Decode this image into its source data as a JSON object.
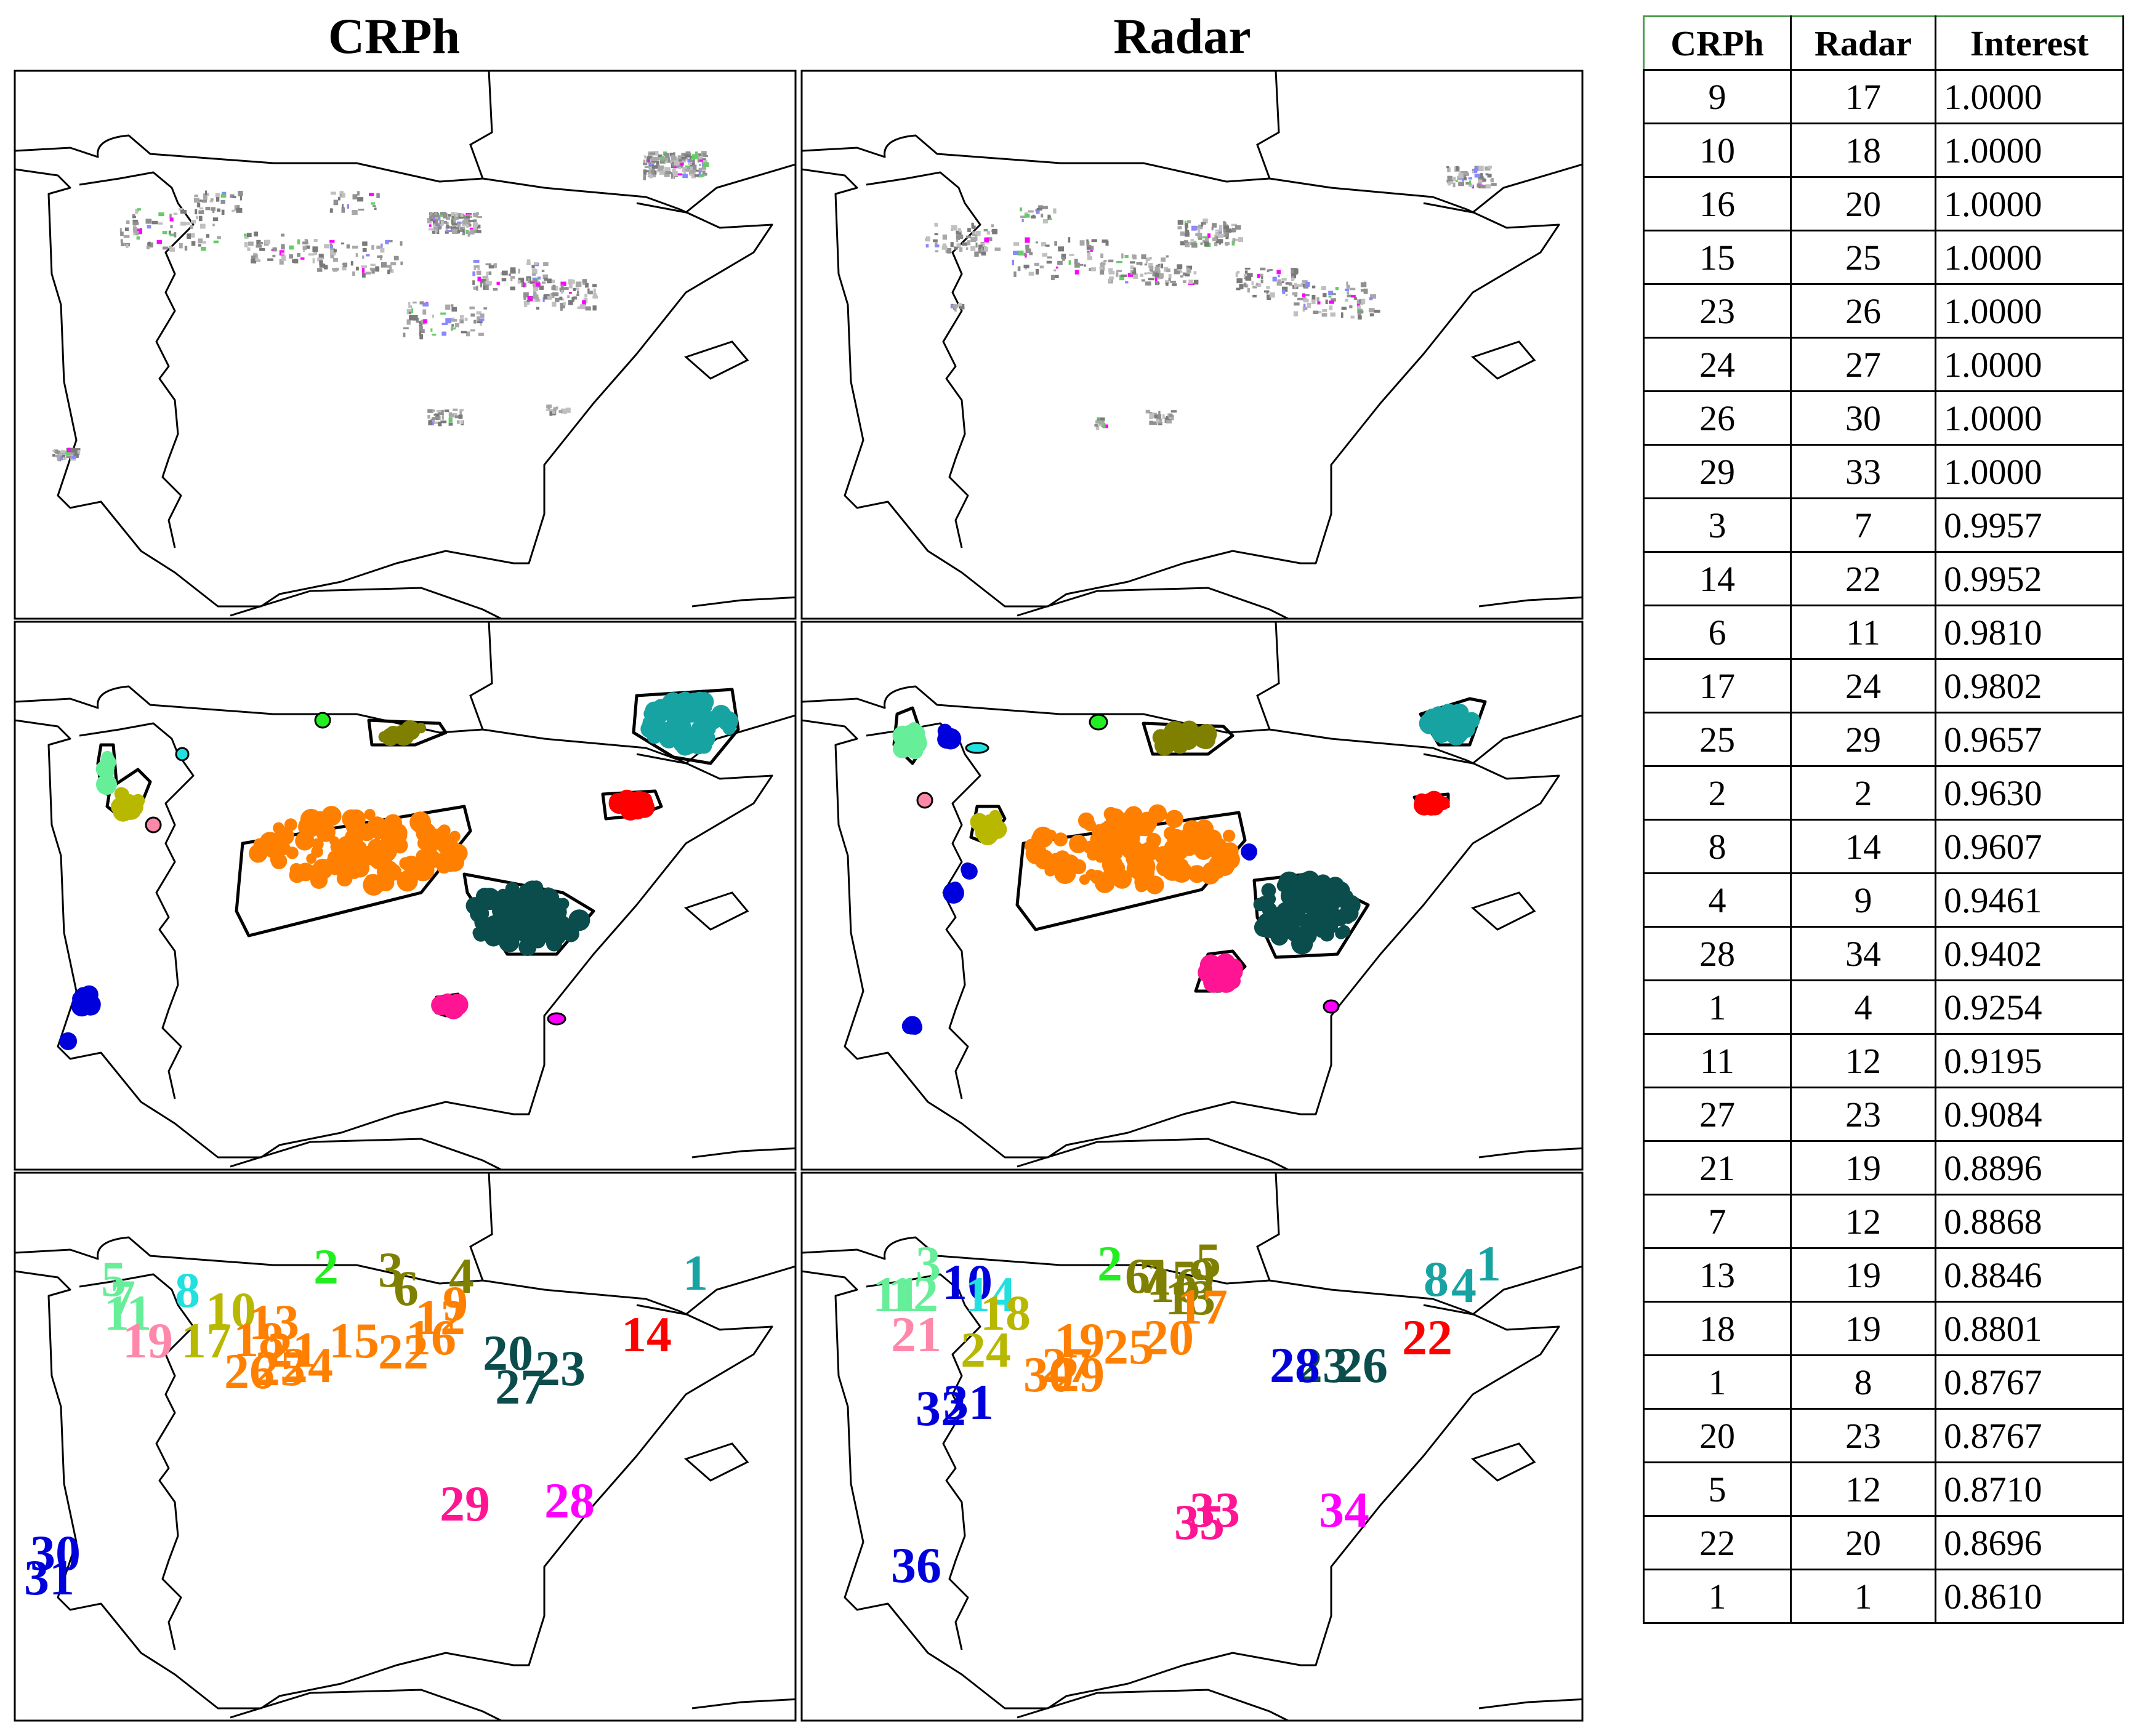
{
  "titles": {
    "left": "CRPh",
    "right": "Radar"
  },
  "colors": {
    "1": "#18a3a3",
    "2": "#22ee22",
    "3": "#808000",
    "4": "#808000",
    "5": "#66ee99",
    "6": "#808000",
    "7": "#66ee99",
    "8": "#22e0e0",
    "9": "#ff8000",
    "10": "#b8b800",
    "11": "#66ee99",
    "12": "#ff8000",
    "13": "#ff8000",
    "14": "#ff0000",
    "15": "#ff8000",
    "16": "#ff8000",
    "17": "#b8b800",
    "18": "#ff8000",
    "19": "#ff88aa",
    "20": "#0b4d4d",
    "21": "#ff8000",
    "22": "#ff8000",
    "23": "#0b4d4d",
    "24": "#ff8000",
    "25": "#ff8000",
    "26": "#ff8000",
    "27": "#0b4d4d",
    "28": "#ff00ff",
    "29": "#ff1493",
    "30": "#0000dd",
    "31": "#0000dd",
    "r1": "#18a3a3",
    "r2": "#22ee22",
    "r3": "#66ee99",
    "r4": "#18a3a3",
    "r5": "#808000",
    "r6": "#808000",
    "r7": "#808000",
    "r8": "#18a3a3",
    "r9": "#808000",
    "r10": "#0000dd",
    "r11": "#66ee99",
    "r12": "#66ee99",
    "r13": "#808000",
    "r14": "#22e0e0",
    "r15": "#808000",
    "r16": "#808000",
    "r17": "#ff8000",
    "r18": "#b8b800",
    "r19": "#ff8000",
    "r20": "#ff8000",
    "r21": "#ff88aa",
    "r22": "#ff0000",
    "r23": "#0b4d4d",
    "r24": "#b8b800",
    "r25": "#ff8000",
    "r26": "#0b4d4d",
    "r27": "#ff8000",
    "r28": "#0000dd",
    "r29": "#ff8000",
    "r30": "#ff8000",
    "r31": "#0000dd",
    "r32": "#0000dd",
    "r33": "#ff1493",
    "r34": "#ff00ff",
    "r35": "#ff1493",
    "r36": "#0000dd"
  },
  "labels": {
    "crph": [
      "1",
      "2",
      "3",
      "4",
      "5",
      "6",
      "7",
      "8",
      "9",
      "10",
      "11",
      "12",
      "13",
      "14",
      "15",
      "16",
      "17",
      "18",
      "19",
      "20",
      "21",
      "22",
      "23",
      "24",
      "25",
      "26",
      "27",
      "28",
      "29",
      "30",
      "31"
    ],
    "radar": [
      "1",
      "2",
      "3",
      "4",
      "5",
      "6",
      "7",
      "8",
      "9",
      "10",
      "11",
      "12",
      "13",
      "14",
      "15",
      "16",
      "17",
      "18",
      "19",
      "20",
      "21",
      "22",
      "23",
      "24",
      "25",
      "26",
      "27",
      "28",
      "29",
      "30",
      "31",
      "32",
      "33",
      "34",
      "35",
      "36"
    ]
  },
  "table": {
    "headers": [
      "CRPh",
      "Radar",
      "Interest"
    ],
    "rows": [
      [
        "9",
        "17",
        "1.0000"
      ],
      [
        "10",
        "18",
        "1.0000"
      ],
      [
        "16",
        "20",
        "1.0000"
      ],
      [
        "15",
        "25",
        "1.0000"
      ],
      [
        "23",
        "26",
        "1.0000"
      ],
      [
        "24",
        "27",
        "1.0000"
      ],
      [
        "26",
        "30",
        "1.0000"
      ],
      [
        "29",
        "33",
        "1.0000"
      ],
      [
        "3",
        "7",
        "0.9957"
      ],
      [
        "14",
        "22",
        "0.9952"
      ],
      [
        "6",
        "11",
        "0.9810"
      ],
      [
        "17",
        "24",
        "0.9802"
      ],
      [
        "25",
        "29",
        "0.9657"
      ],
      [
        "2",
        "2",
        "0.9630"
      ],
      [
        "8",
        "14",
        "0.9607"
      ],
      [
        "4",
        "9",
        "0.9461"
      ],
      [
        "28",
        "34",
        "0.9402"
      ],
      [
        "1",
        "4",
        "0.9254"
      ],
      [
        "11",
        "12",
        "0.9195"
      ],
      [
        "27",
        "23",
        "0.9084"
      ],
      [
        "21",
        "19",
        "0.8896"
      ],
      [
        "7",
        "12",
        "0.8868"
      ],
      [
        "13",
        "19",
        "0.8846"
      ],
      [
        "18",
        "19",
        "0.8801"
      ],
      [
        "1",
        "8",
        "0.8767"
      ],
      [
        "20",
        "23",
        "0.8767"
      ],
      [
        "5",
        "12",
        "0.8710"
      ],
      [
        "22",
        "20",
        "0.8696"
      ],
      [
        "1",
        "1",
        "0.8610"
      ]
    ]
  }
}
